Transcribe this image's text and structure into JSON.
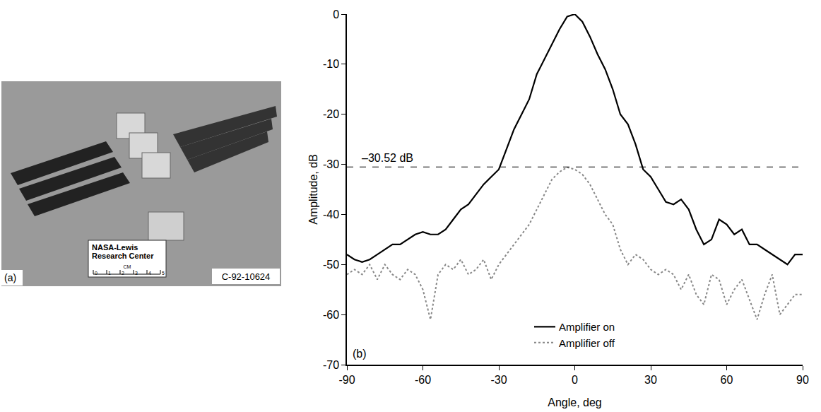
{
  "chart_data": {
    "type": "line",
    "panel_label": "(b)",
    "x_label": "Angle, deg",
    "y_label": "Amplitude, dB",
    "xlim": [
      -90,
      90
    ],
    "xticks": [
      -90,
      -60,
      -30,
      0,
      30,
      60,
      90
    ],
    "ylim": [
      -70,
      0
    ],
    "yticks": [
      -70,
      -60,
      -50,
      -40,
      -30,
      -20,
      -10,
      0
    ],
    "grid": false,
    "legend": "bottom",
    "reference_line": {
      "value": -30.52,
      "label": "–30.52 dB"
    },
    "x": [
      -90,
      -87,
      -84,
      -81,
      -78,
      -75,
      -72,
      -69,
      -66,
      -63,
      -60,
      -57,
      -54,
      -51,
      -48,
      -45,
      -42,
      -39,
      -36,
      -33,
      -30,
      -27,
      -24,
      -21,
      -18,
      -15,
      -12,
      -9,
      -6,
      -3,
      0,
      3,
      6,
      9,
      12,
      15,
      18,
      21,
      24,
      27,
      30,
      33,
      36,
      39,
      42,
      45,
      48,
      51,
      54,
      57,
      60,
      63,
      66,
      69,
      72,
      75,
      78,
      81,
      84,
      87,
      90
    ],
    "series": [
      {
        "name": "Amplifier on",
        "color": "#000000",
        "line_style": "solid",
        "values": [
          -48,
          -49,
          -49.5,
          -49,
          -48,
          -47,
          -46,
          -46,
          -45,
          -44,
          -43.5,
          -44,
          -44,
          -43,
          -41,
          -39,
          -38,
          -36,
          -34,
          -32.5,
          -31,
          -27,
          -23,
          -20,
          -17,
          -12,
          -9,
          -6,
          -3,
          -0.5,
          0,
          -1.5,
          -4.5,
          -8,
          -11,
          -15,
          -20,
          -22,
          -26,
          -31,
          -32.5,
          -35,
          -37.5,
          -38,
          -37,
          -39,
          -43,
          -46,
          -45,
          -41,
          -42,
          -44,
          -43,
          -46,
          -46,
          -47,
          -48,
          -49,
          -50,
          -48,
          -48
        ]
      },
      {
        "name": "Amplifier off",
        "color": "#888888",
        "line_style": "dot",
        "values": [
          -52,
          -51,
          -52,
          -50,
          -53,
          -50,
          -52,
          -53,
          -51,
          -52,
          -55,
          -61,
          -52,
          -50,
          -51,
          -49,
          -52,
          -51,
          -49,
          -53,
          -50,
          -48,
          -46,
          -44,
          -42,
          -39,
          -36,
          -33,
          -31.5,
          -30.6,
          -31,
          -32,
          -34,
          -37,
          -40,
          -42,
          -47,
          -50,
          -48,
          -49,
          -51,
          -52,
          -51,
          -52,
          -55,
          -52,
          -56,
          -58,
          -52,
          -53,
          -58,
          -55,
          -53,
          -57,
          -61,
          -56,
          -52,
          -60,
          -58,
          -56,
          -56
        ]
      }
    ]
  },
  "photo": {
    "panel_label": "(a)",
    "caption": "C-92-10624",
    "card_lines": [
      "NASA-Lewis",
      "Research Center"
    ],
    "card_unit": "CM",
    "card_ticks": [
      0,
      1,
      2,
      3,
      4,
      5
    ]
  }
}
